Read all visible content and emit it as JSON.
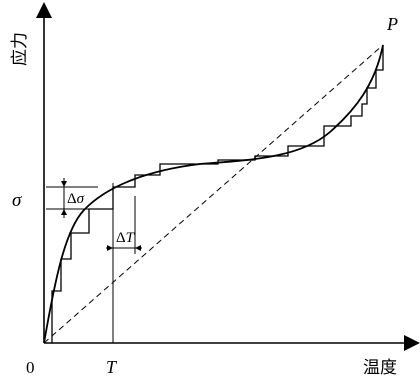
{
  "labels": {
    "y_axis": "应力",
    "x_axis": "温度",
    "origin": "0",
    "t_tick": "T",
    "sigma_tick": "σ",
    "point_p": "P",
    "delta_sigma": "Δσ",
    "delta_t": "ΔT"
  }
}
